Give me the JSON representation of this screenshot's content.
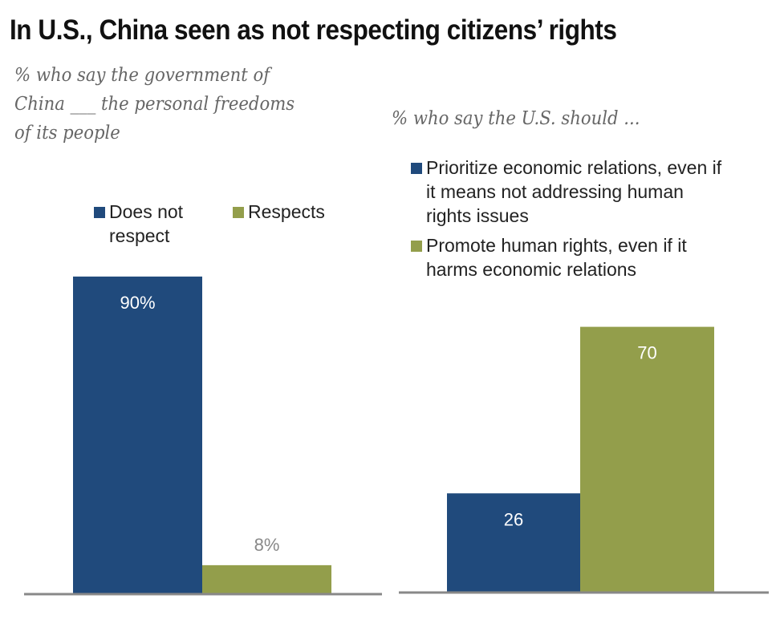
{
  "title": "In U.S., China seen as not respecting citizens’ rights",
  "colors": {
    "blue": "#204a7c",
    "green": "#939e4b",
    "baseline": "#888888",
    "outside_label": "#888888"
  },
  "chart_data": [
    {
      "type": "bar",
      "subtitle_lines": [
        "% who say the government of",
        "China ___ the personal freedoms",
        "of its people"
      ],
      "categories": [
        "Does not respect",
        "Respects"
      ],
      "legend": [
        {
          "name_lines": [
            "Does not",
            "respect"
          ]
        },
        {
          "name_lines": [
            "Respects"
          ]
        }
      ],
      "values": [
        90,
        8
      ],
      "data_labels": [
        "90%",
        "8%"
      ],
      "legend_placement": "top",
      "grid": false
    },
    {
      "type": "bar",
      "subtitle_lines": [
        "% who say the U.S. should ..."
      ],
      "categories": [
        "Prioritize economic relations, even if it means not addressing human rights issues",
        "Promote human rights, even if it harms economic relations"
      ],
      "legend": [
        {
          "name_lines": [
            "Prioritize economic relations, even if",
            "it means not addressing human",
            "rights issues"
          ]
        },
        {
          "name_lines": [
            "Promote human rights, even if it",
            "harms economic relations"
          ]
        }
      ],
      "values": [
        26,
        70
      ],
      "data_labels": [
        "26",
        "70"
      ],
      "legend_placement": "top",
      "grid": false
    }
  ]
}
